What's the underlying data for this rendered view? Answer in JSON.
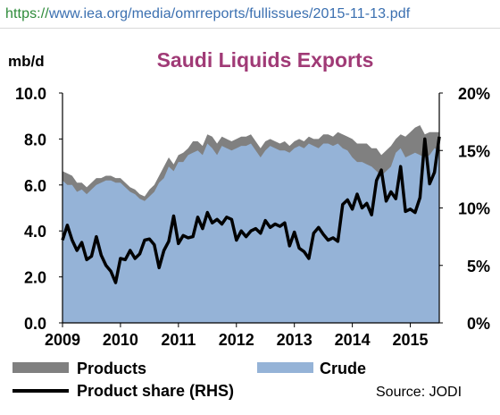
{
  "browser": {
    "url_scheme": "https://",
    "url_rest": "www.iea.org/media/omrreports/fullissues/2015-11-13.pdf"
  },
  "chart_data": {
    "type": "area",
    "title": "Saudi Liquids Exports",
    "ylabel": "mb/d",
    "source": "Source: JODI",
    "ylim": [
      0,
      10
    ],
    "y2lim": [
      0,
      20
    ],
    "y_ticks": [
      "0.0",
      "2.0",
      "4.0",
      "6.0",
      "8.0",
      "10.0"
    ],
    "y2_ticks": [
      "0%",
      "5%",
      "10%",
      "15%",
      "20%"
    ],
    "x_ticks": [
      "2009",
      "2010",
      "2011",
      "2012",
      "2013",
      "2014",
      "2015"
    ],
    "x": [
      2009.0,
      2009.083,
      2009.167,
      2009.25,
      2009.333,
      2009.417,
      2009.5,
      2009.583,
      2009.667,
      2009.75,
      2009.833,
      2009.917,
      2010.0,
      2010.083,
      2010.167,
      2010.25,
      2010.333,
      2010.417,
      2010.5,
      2010.583,
      2010.667,
      2010.75,
      2010.833,
      2010.917,
      2011.0,
      2011.083,
      2011.167,
      2011.25,
      2011.333,
      2011.417,
      2011.5,
      2011.583,
      2011.667,
      2011.75,
      2011.833,
      2011.917,
      2012.0,
      2012.083,
      2012.167,
      2012.25,
      2012.333,
      2012.417,
      2012.5,
      2012.583,
      2012.667,
      2012.75,
      2012.833,
      2012.917,
      2013.0,
      2013.083,
      2013.167,
      2013.25,
      2013.333,
      2013.417,
      2013.5,
      2013.583,
      2013.667,
      2013.75,
      2013.833,
      2013.917,
      2014.0,
      2014.083,
      2014.167,
      2014.25,
      2014.333,
      2014.417,
      2014.5,
      2014.583,
      2014.667,
      2014.75,
      2014.833,
      2014.917,
      2015.0,
      2015.083,
      2015.167,
      2015.25,
      2015.333,
      2015.417,
      2015.5
    ],
    "series": [
      {
        "name": "Crude",
        "color": "#95b3d7",
        "values": [
          6.2,
          6.0,
          6.0,
          5.7,
          5.8,
          5.6,
          5.8,
          6.0,
          6.1,
          6.2,
          6.2,
          6.1,
          6.1,
          5.9,
          5.7,
          5.6,
          5.4,
          5.3,
          5.5,
          5.7,
          6.1,
          6.3,
          6.8,
          6.6,
          7.0,
          7.0,
          7.3,
          7.4,
          7.5,
          7.3,
          7.8,
          7.6,
          7.3,
          7.7,
          7.6,
          7.5,
          7.6,
          7.7,
          7.7,
          7.8,
          7.5,
          7.2,
          7.5,
          7.7,
          7.6,
          7.5,
          7.5,
          7.4,
          7.6,
          7.7,
          7.6,
          7.8,
          7.7,
          7.6,
          7.8,
          7.8,
          7.7,
          7.8,
          7.6,
          7.5,
          7.2,
          7.0,
          7.0,
          6.9,
          6.8,
          6.6,
          6.4,
          6.6,
          6.8,
          7.4,
          7.6,
          7.2,
          7.3,
          7.4,
          7.3,
          7.2,
          7.3,
          7.6,
          7.5
        ]
      },
      {
        "name": "Products",
        "color": "#808080",
        "values": [
          0.4,
          0.5,
          0.4,
          0.4,
          0.3,
          0.3,
          0.3,
          0.3,
          0.2,
          0.2,
          0.2,
          0.2,
          0.2,
          0.2,
          0.2,
          0.2,
          0.2,
          0.2,
          0.3,
          0.3,
          0.3,
          0.5,
          0.4,
          0.3,
          0.3,
          0.4,
          0.3,
          0.5,
          0.4,
          0.4,
          0.4,
          0.5,
          0.5,
          0.4,
          0.4,
          0.4,
          0.4,
          0.4,
          0.4,
          0.4,
          0.4,
          0.4,
          0.4,
          0.3,
          0.3,
          0.3,
          0.4,
          0.3,
          0.3,
          0.3,
          0.3,
          0.3,
          0.3,
          0.4,
          0.4,
          0.4,
          0.4,
          0.5,
          0.6,
          0.6,
          0.8,
          0.8,
          0.8,
          0.9,
          0.8,
          1.0,
          0.9,
          0.9,
          0.9,
          0.6,
          0.6,
          0.9,
          1.0,
          1.1,
          1.3,
          1.0,
          1.0,
          0.7,
          0.8
        ]
      },
      {
        "name": "Product share (RHS)",
        "color": "#000000",
        "axis": "right",
        "values": [
          7.2,
          8.5,
          7.2,
          6.3,
          7.0,
          5.5,
          5.8,
          7.5,
          5.9,
          5.0,
          4.5,
          3.5,
          5.6,
          5.5,
          6.3,
          5.6,
          6.0,
          7.2,
          7.3,
          6.8,
          4.8,
          6.3,
          7.1,
          9.3,
          6.9,
          7.6,
          7.4,
          7.5,
          9.2,
          8.2,
          9.6,
          8.7,
          9.0,
          8.6,
          9.2,
          9.0,
          7.2,
          8.0,
          7.5,
          8.0,
          8.2,
          7.8,
          8.9,
          8.3,
          8.6,
          8.4,
          8.7,
          6.7,
          7.9,
          6.5,
          6.2,
          5.6,
          7.8,
          8.3,
          7.7,
          7.2,
          7.4,
          7.1,
          10.3,
          10.7,
          9.9,
          11.2,
          10.0,
          10.4,
          9.4,
          12.4,
          13.3,
          10.6,
          11.4,
          10.8,
          13.6,
          9.7,
          9.9,
          9.6,
          10.9,
          16.0,
          12.1,
          13.1,
          16.2
        ]
      }
    ],
    "legend": [
      "Products",
      "Crude",
      "Product share (RHS)"
    ],
    "legend_position": "bottom",
    "grid": false
  }
}
